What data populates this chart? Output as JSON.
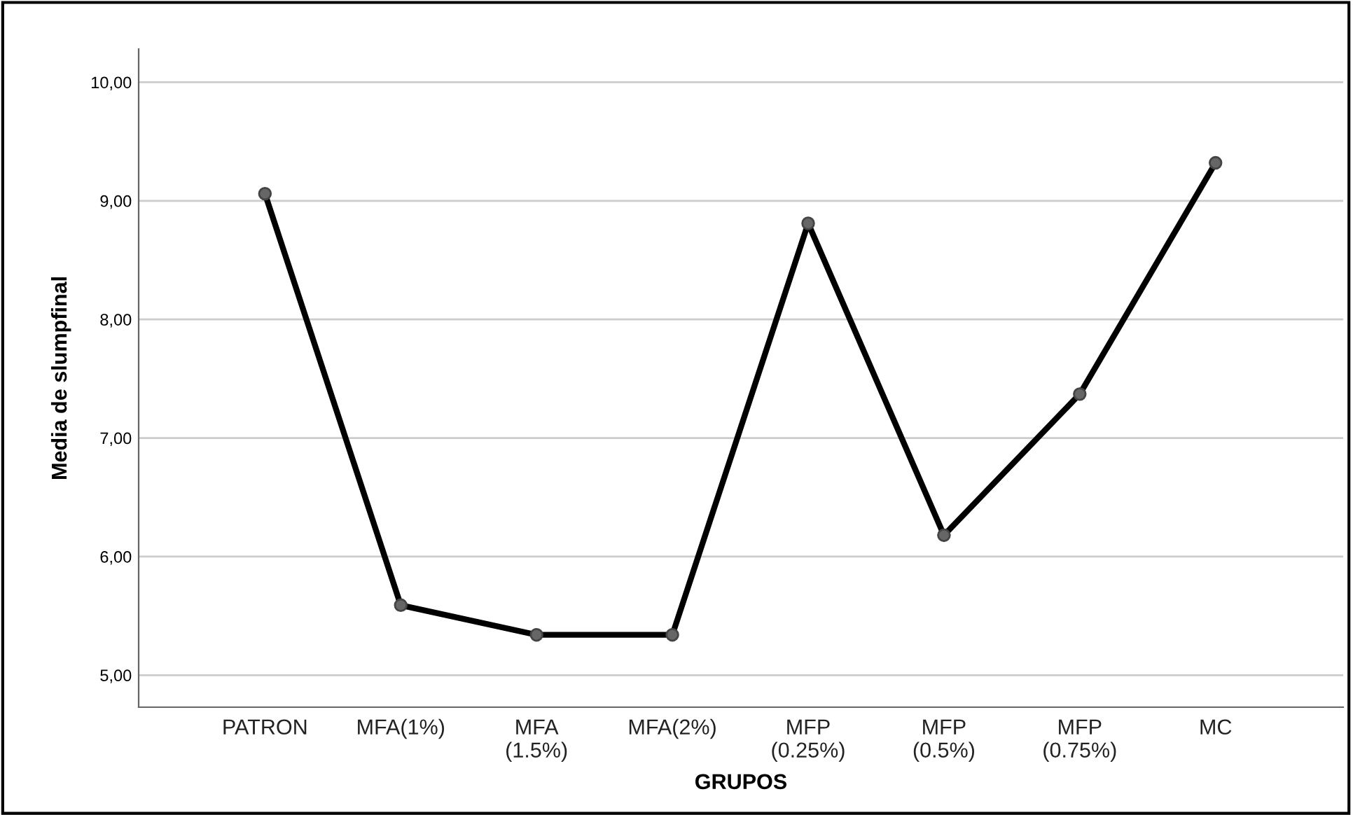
{
  "chart_data": {
    "type": "line",
    "xlabel": "GRUPOS",
    "ylabel": "Media de slumpfinal",
    "categories": [
      "PATRON",
      "MFA(1%)",
      "MFA\n(1.5%)",
      "MFA(2%)",
      "MFP\n(0.25%)",
      "MFP\n(0.5%)",
      "MFP\n(0.75%)",
      "MC"
    ],
    "series": [
      {
        "color": "#000000",
        "values": [
          9.06,
          5.59,
          5.34,
          5.34,
          8.81,
          6.18,
          7.37,
          9.32
        ]
      }
    ],
    "ylim": [
      4.73,
      10.28
    ],
    "yticks": [
      {
        "value": 5,
        "label": "5,00"
      },
      {
        "value": 6,
        "label": "6,00"
      },
      {
        "value": 7,
        "label": "7,00"
      },
      {
        "value": 8,
        "label": "8,00"
      },
      {
        "value": 9,
        "label": "9,00"
      },
      {
        "value": 10,
        "label": "10,00"
      }
    ],
    "grid": "y",
    "marker": "circle",
    "line_style": "solid",
    "legend": false
  }
}
